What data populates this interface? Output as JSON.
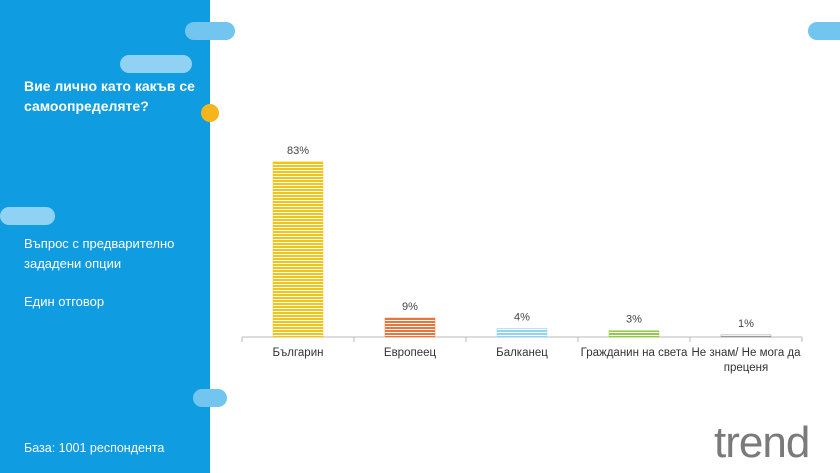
{
  "panel": {
    "title": "Вие лично като какъв се самоопределяте?",
    "notes": [
      "Въпрос с предварително зададени опции",
      "Един отговор"
    ],
    "base": "База:  1001 респондента"
  },
  "logo": "trend",
  "chart_data": {
    "type": "bar",
    "categories": [
      "Българин",
      "Европеец",
      "Балканец",
      "Гражданин на света",
      "Не знам/ Не мога да преценя"
    ],
    "values": [
      83,
      9,
      4,
      3,
      1
    ],
    "value_labels": [
      "83%",
      "9%",
      "4%",
      "3%",
      "1%"
    ],
    "colors": [
      "#f2c417",
      "#e9743d",
      "#8fd4f2",
      "#93c947",
      "#9a9a9a"
    ]
  }
}
